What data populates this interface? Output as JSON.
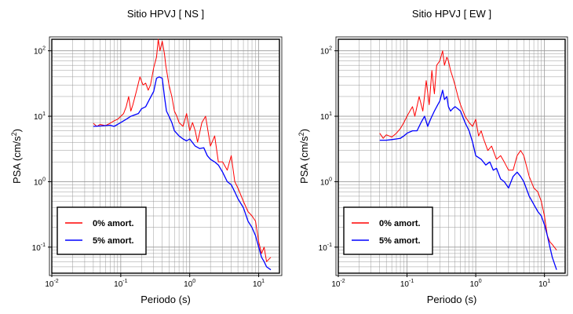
{
  "chart_data": [
    {
      "type": "line",
      "title": "Sitio HPVJ [ NS ]",
      "xlabel": "Periodo (s)",
      "ylabel_main": "PSA (cm/s",
      "ylabel_sup": "2",
      "ylabel_tail": ")",
      "xscale": "log",
      "yscale": "log",
      "xlim": [
        0.01,
        20
      ],
      "ylim": [
        0.04,
        150
      ],
      "grid": true,
      "legend_position": "bottom-left",
      "x_ticks": [
        {
          "value": 0.01,
          "base": "10",
          "exp": "-2"
        },
        {
          "value": 0.1,
          "base": "10",
          "exp": "-1"
        },
        {
          "value": 1,
          "base": "10",
          "exp": "0"
        },
        {
          "value": 10,
          "base": "10",
          "exp": "1"
        }
      ],
      "y_ticks": [
        {
          "value": 0.1,
          "base": "10",
          "exp": "-1"
        },
        {
          "value": 1,
          "base": "10",
          "exp": "0"
        },
        {
          "value": 10,
          "base": "10",
          "exp": "1"
        },
        {
          "value": 100,
          "base": "10",
          "exp": "2"
        }
      ],
      "series": [
        {
          "name": "0% amort.",
          "color": "#ff0000",
          "x": [
            0.04,
            0.045,
            0.05,
            0.06,
            0.07,
            0.08,
            0.09,
            0.1,
            0.11,
            0.12,
            0.13,
            0.14,
            0.15,
            0.17,
            0.19,
            0.21,
            0.23,
            0.25,
            0.27,
            0.3,
            0.33,
            0.35,
            0.37,
            0.4,
            0.43,
            0.45,
            0.5,
            0.55,
            0.6,
            0.65,
            0.7,
            0.8,
            0.9,
            1.0,
            1.1,
            1.2,
            1.3,
            1.5,
            1.7,
            2.0,
            2.3,
            2.6,
            3.0,
            3.5,
            4.0,
            4.5,
            5.0,
            6.0,
            7.0,
            8.0,
            9.0,
            10,
            11,
            12,
            13,
            15
          ],
          "y": [
            7.8,
            7.0,
            7.5,
            7.2,
            7.8,
            8.5,
            9.0,
            10,
            11,
            14,
            20,
            12,
            15,
            25,
            40,
            30,
            32,
            25,
            30,
            55,
            80,
            150,
            100,
            140,
            90,
            60,
            30,
            20,
            12,
            10,
            8,
            7,
            11,
            6,
            8,
            6,
            4,
            8,
            10,
            3.5,
            5,
            2,
            2,
            1.5,
            2.5,
            1.0,
            0.8,
            0.5,
            0.35,
            0.3,
            0.25,
            0.12,
            0.08,
            0.1,
            0.06,
            0.07
          ]
        },
        {
          "name": "5% amort.",
          "color": "#0000ff",
          "x": [
            0.04,
            0.05,
            0.06,
            0.07,
            0.08,
            0.09,
            0.1,
            0.12,
            0.14,
            0.16,
            0.18,
            0.2,
            0.23,
            0.26,
            0.3,
            0.33,
            0.36,
            0.4,
            0.43,
            0.46,
            0.5,
            0.55,
            0.6,
            0.7,
            0.8,
            0.9,
            1.0,
            1.2,
            1.4,
            1.6,
            1.8,
            2.0,
            2.3,
            2.6,
            3.0,
            3.5,
            4.0,
            4.5,
            5.0,
            6.0,
            7.0,
            8.0,
            9.0,
            10,
            11,
            12,
            13,
            15
          ],
          "y": [
            7.0,
            7.1,
            7.2,
            7.3,
            7.0,
            7.5,
            8.0,
            9.0,
            10,
            10.5,
            11,
            13,
            14,
            18,
            24,
            38,
            40,
            38,
            20,
            12,
            10,
            8,
            6,
            5,
            4.5,
            4.2,
            4.5,
            3.5,
            3.2,
            3.3,
            2.5,
            2.2,
            2.0,
            1.8,
            1.4,
            1.0,
            0.9,
            0.7,
            0.55,
            0.4,
            0.25,
            0.2,
            0.15,
            0.1,
            0.07,
            0.06,
            0.05,
            0.045
          ]
        }
      ]
    },
    {
      "type": "line",
      "title": "Sitio HPVJ [ EW ]",
      "xlabel": "Periodo (s)",
      "ylabel_main": "PSA (cm/s",
      "ylabel_sup": "2",
      "ylabel_tail": ")",
      "xscale": "log",
      "yscale": "log",
      "xlim": [
        0.01,
        20
      ],
      "ylim": [
        0.04,
        150
      ],
      "grid": true,
      "legend_position": "bottom-left",
      "x_ticks": [
        {
          "value": 0.01,
          "base": "10",
          "exp": "-2"
        },
        {
          "value": 0.1,
          "base": "10",
          "exp": "-1"
        },
        {
          "value": 1,
          "base": "10",
          "exp": "0"
        },
        {
          "value": 10,
          "base": "10",
          "exp": "1"
        }
      ],
      "y_ticks": [
        {
          "value": 0.1,
          "base": "10",
          "exp": "-1"
        },
        {
          "value": 1,
          "base": "10",
          "exp": "0"
        },
        {
          "value": 10,
          "base": "10",
          "exp": "1"
        },
        {
          "value": 100,
          "base": "10",
          "exp": "2"
        }
      ],
      "series": [
        {
          "name": "0% amort.",
          "color": "#ff0000",
          "x": [
            0.04,
            0.045,
            0.05,
            0.06,
            0.07,
            0.08,
            0.09,
            0.1,
            0.11,
            0.12,
            0.13,
            0.15,
            0.17,
            0.19,
            0.21,
            0.23,
            0.25,
            0.27,
            0.3,
            0.33,
            0.35,
            0.38,
            0.4,
            0.43,
            0.46,
            0.5,
            0.55,
            0.6,
            0.7,
            0.8,
            0.9,
            1.0,
            1.1,
            1.2,
            1.3,
            1.5,
            1.7,
            2.0,
            2.3,
            2.6,
            3.0,
            3.5,
            4.0,
            4.5,
            5.0,
            6.0,
            7.0,
            8.0,
            9.0,
            10,
            11,
            12,
            13,
            15
          ],
          "y": [
            5.5,
            4.6,
            5.2,
            4.8,
            5.5,
            6.5,
            8,
            10,
            12,
            14,
            10,
            20,
            12,
            35,
            15,
            50,
            22,
            60,
            70,
            100,
            60,
            80,
            70,
            50,
            40,
            30,
            20,
            15,
            10,
            8,
            7,
            9,
            5,
            6,
            4.5,
            3,
            3.5,
            2.2,
            2.5,
            2,
            1.5,
            1.5,
            2.5,
            3.0,
            2.5,
            1.2,
            0.8,
            0.7,
            0.5,
            0.3,
            0.15,
            0.12,
            0.11,
            0.09
          ]
        },
        {
          "name": "5% amort.",
          "color": "#0000ff",
          "x": [
            0.04,
            0.05,
            0.06,
            0.07,
            0.08,
            0.09,
            0.1,
            0.12,
            0.14,
            0.16,
            0.18,
            0.2,
            0.22,
            0.25,
            0.28,
            0.3,
            0.33,
            0.35,
            0.38,
            0.4,
            0.43,
            0.46,
            0.5,
            0.55,
            0.6,
            0.7,
            0.8,
            0.9,
            1.0,
            1.2,
            1.4,
            1.6,
            1.8,
            2.0,
            2.3,
            2.6,
            3.0,
            3.5,
            4.0,
            4.5,
            5.0,
            6.0,
            7.0,
            8.0,
            9.0,
            10,
            11,
            12,
            13,
            15
          ],
          "y": [
            4.3,
            4.3,
            4.4,
            4.5,
            4.6,
            5,
            5.5,
            6,
            6,
            8,
            10,
            7,
            9,
            12,
            15,
            17,
            25,
            18,
            20,
            14,
            12,
            13,
            14,
            13,
            12,
            8,
            6,
            4,
            2.5,
            2.2,
            1.8,
            2.0,
            1.5,
            1.6,
            1.1,
            1.0,
            0.8,
            1.2,
            1.4,
            1.2,
            1.0,
            0.6,
            0.45,
            0.35,
            0.3,
            0.22,
            0.15,
            0.1,
            0.07,
            0.045
          ]
        }
      ]
    }
  ]
}
